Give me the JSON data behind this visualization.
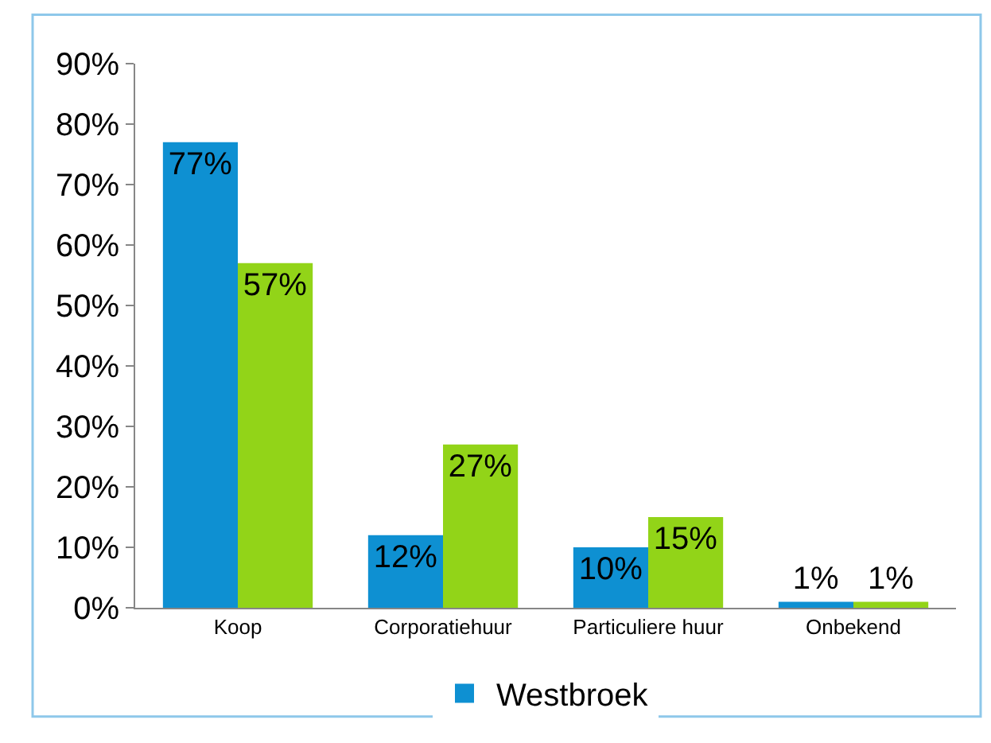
{
  "chart_data": {
    "type": "bar",
    "categories": [
      "Koop",
      "Corporatiehuur",
      "Particuliere huur",
      "Onbekend"
    ],
    "series": [
      {
        "name": "Westbroek",
        "color": "#0e90d2",
        "values": [
          77,
          12,
          10,
          1
        ],
        "value_labels": [
          "77%",
          "12%",
          "10%",
          "1%"
        ]
      },
      {
        "color": "#92d418",
        "values": [
          57,
          27,
          15,
          1
        ],
        "value_labels": [
          "57%",
          "27%",
          "15%",
          "1%"
        ]
      }
    ],
    "ylim": [
      0,
      90
    ],
    "yticks": [
      {
        "value": 0,
        "label": "0%"
      },
      {
        "value": 10,
        "label": "10%"
      },
      {
        "value": 20,
        "label": "20%"
      },
      {
        "value": 30,
        "label": "30%"
      },
      {
        "value": 40,
        "label": "40%"
      },
      {
        "value": 50,
        "label": "50%"
      },
      {
        "value": 60,
        "label": "60%"
      },
      {
        "value": 70,
        "label": "70%"
      },
      {
        "value": 80,
        "label": "80%"
      },
      {
        "value": 90,
        "label": "90%"
      }
    ],
    "grid": false,
    "legend": "bottom"
  }
}
